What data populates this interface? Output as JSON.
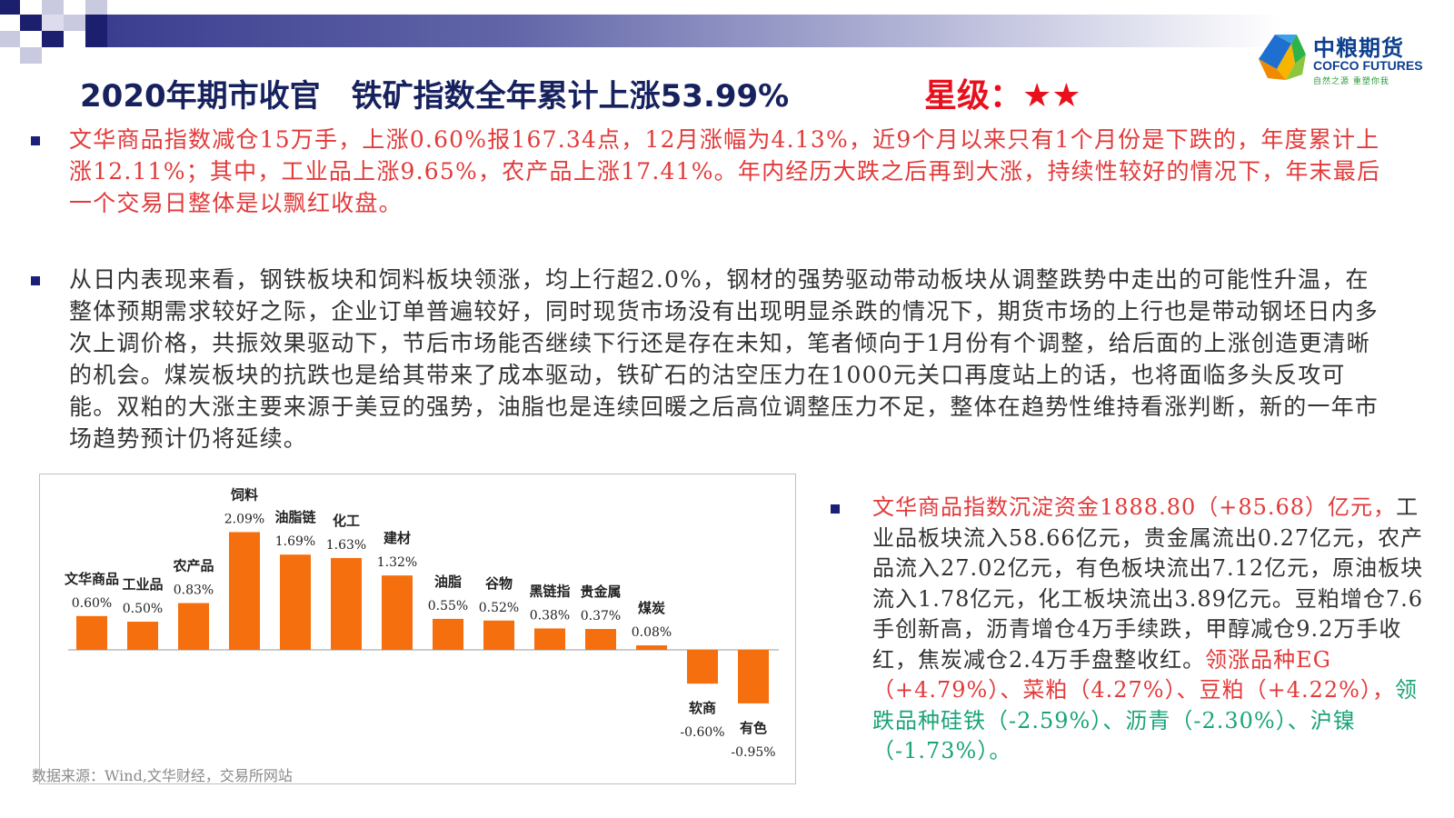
{
  "header": {
    "title": "2020年期市收官　铁矿指数全年累计上涨53.99%",
    "rating": "星级：★★"
  },
  "logo": {
    "name_cn": "中粮期货",
    "name_en": "COFCO FUTURES",
    "slogan": "自然之源 重塑你我"
  },
  "paragraphs": {
    "p1": "文华商品指数减仓15万手，上涨0.60%报167.34点，12月涨幅为4.13%，近9个月以来只有1个月份是下跌的，年度累计上涨12.11%；其中，工业品上涨9.65%，农产品上涨17.41%。年内经历大跌之后再到大涨，持续性较好的情况下，年末最后一个交易日整体是以飘红收盘。",
    "p2": "从日内表现来看，钢铁板块和饲料板块领涨，均上行超2.0%，钢材的强势驱动带动板块从调整跌势中走出的可能性升温，在整体预期需求较好之际，企业订单普遍较好，同时现货市场没有出现明显杀跌的情况下，期货市场的上行也是带动钢坯日内多次上调价格，共振效果驱动下，节后市场能否继续下行还是存在未知，笔者倾向于1月份有个调整，给后面的上涨创造更清晰的机会。煤炭板块的抗跌也是给其带来了成本驱动，铁矿石的沽空压力在1000元关口再度站上的话，也将面临多头反攻可能。双粕的大涨主要来源于美豆的强势，油脂也是连续回暖之后高位调整压力不足，整体在趋势性维持看涨判断，新的一年市场趋势预计仍将延续。",
    "p3_red": "文华商品指数沉淀资金1888.80（+85.68）亿元，",
    "p3_dark": "工业品板块流入58.66亿元，贵金属流出0.27亿元，农产品流入27.02亿元，有色板块流出7.12亿元，原油板块流入1.78亿元，化工板块流出3.89亿元。豆粕增仓7.6手创新高，沥青增仓4万手续跌，甲醇减仓9.2万手收红，焦炭减仓2.4万手盘整收红。",
    "p3_red2": "领涨品种EG（+4.79%）、菜粕（4.27%）、豆粕（+4.22%），",
    "p3_green": "领跌品种硅铁（-2.59%）、沥青（-2.30%）、沪镍（-1.73%）。"
  },
  "source": "数据来源：Wind,文华财经，交易所网站",
  "colors": {
    "bar": "#f56f0f",
    "title": "#16215e",
    "red_text": "#e23a3a",
    "green_text": "#1aa37a",
    "star": "#e8101c"
  },
  "chart_data": {
    "type": "bar",
    "categories": [
      "文华商品",
      "工业品",
      "农产品",
      "饲料",
      "油脂链",
      "化工",
      "建材",
      "油脂",
      "谷物",
      "黑链指",
      "贵金属",
      "煤炭",
      "软商",
      "有色"
    ],
    "values": [
      0.6,
      0.5,
      0.83,
      2.09,
      1.69,
      1.63,
      1.32,
      0.55,
      0.52,
      0.38,
      0.37,
      0.08,
      -0.6,
      -0.95
    ],
    "value_labels": [
      "0.60%",
      "0.50%",
      "0.83%",
      "2.09%",
      "1.69%",
      "1.63%",
      "1.32%",
      "0.55%",
      "0.52%",
      "0.38%",
      "0.37%",
      "0.08%",
      "-0.60%",
      "-0.95%"
    ],
    "unit": "%",
    "title": "",
    "xlabel": "",
    "ylabel": "",
    "ylim": [
      -1.0,
      2.2
    ],
    "grid": false,
    "legend": "none"
  }
}
